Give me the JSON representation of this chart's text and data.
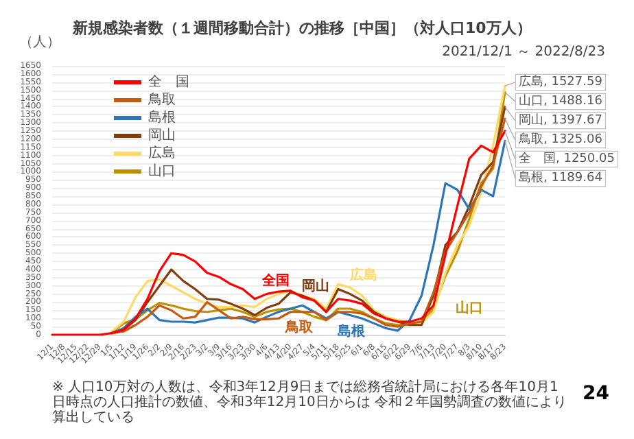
{
  "chart_data": {
    "type": "line",
    "title": "新規感染者数（１週間移動合計）の推移［中国］（対人口10万人）",
    "subtitle": "2021/12/1 ～ 2022/8/23",
    "ylabel": "（人）",
    "categories": [
      "12/1",
      "12/8",
      "12/15",
      "12/22",
      "12/29",
      "1/5",
      "1/12",
      "1/19",
      "1/26",
      "2/2",
      "2/9",
      "2/16",
      "2/23",
      "3/2",
      "3/9",
      "3/16",
      "3/23",
      "3/30",
      "4/6",
      "4/13",
      "4/20",
      "4/27",
      "5/4",
      "5/11",
      "5/18",
      "5/25",
      "6/1",
      "6/8",
      "6/15",
      "6/22",
      "6/29",
      "7/6",
      "7/13",
      "7/20",
      "7/27",
      "8/3",
      "8/10",
      "8/17",
      "8/23"
    ],
    "series": [
      {
        "name": "全　国",
        "color": "#ff0000",
        "values": [
          0,
          0,
          0,
          0,
          0,
          10,
          30,
          100,
          220,
          390,
          500,
          490,
          450,
          380,
          355,
          310,
          280,
          220,
          250,
          265,
          270,
          230,
          210,
          140,
          220,
          210,
          190,
          130,
          100,
          80,
          80,
          100,
          180,
          490,
          790,
          1080,
          1160,
          1120,
          1250.05
        ],
        "value_labels": [
          null,
          null,
          null,
          null,
          null,
          null,
          null,
          null,
          null,
          null,
          null,
          null,
          null,
          null,
          null,
          null,
          null,
          null,
          null,
          null,
          null,
          null,
          null,
          null,
          null,
          null,
          null,
          null,
          null,
          null,
          null,
          null,
          null,
          null,
          null,
          null,
          null,
          null,
          "全　国, 1250.05"
        ]
      },
      {
        "name": "鳥取",
        "color": "#c55a11",
        "values": [
          null,
          null,
          null,
          null,
          null,
          10,
          20,
          60,
          110,
          180,
          150,
          100,
          110,
          200,
          150,
          100,
          110,
          95,
          95,
          100,
          140,
          140,
          140,
          90,
          140,
          140,
          130,
          100,
          60,
          50,
          70,
          80,
          260,
          510,
          630,
          750,
          910,
          1040,
          1325.06
        ],
        "value_labels": [
          null,
          null,
          null,
          null,
          null,
          null,
          null,
          null,
          null,
          null,
          null,
          null,
          null,
          null,
          null,
          null,
          null,
          null,
          null,
          null,
          null,
          null,
          null,
          null,
          null,
          null,
          null,
          null,
          null,
          null,
          null,
          null,
          null,
          null,
          null,
          null,
          null,
          null,
          "鳥取, 1325.06"
        ]
      },
      {
        "name": "島根",
        "color": "#2e75b6",
        "values": [
          null,
          null,
          null,
          null,
          null,
          10,
          40,
          110,
          160,
          90,
          80,
          80,
          75,
          90,
          105,
          105,
          100,
          75,
          110,
          140,
          160,
          180,
          140,
          100,
          140,
          120,
          100,
          70,
          40,
          25,
          90,
          240,
          550,
          930,
          890,
          770,
          890,
          850,
          1189.64
        ],
        "value_labels": [
          null,
          null,
          null,
          null,
          null,
          null,
          null,
          null,
          null,
          null,
          null,
          null,
          null,
          null,
          null,
          null,
          null,
          null,
          null,
          null,
          null,
          null,
          null,
          null,
          null,
          null,
          null,
          null,
          null,
          null,
          null,
          null,
          null,
          null,
          null,
          null,
          null,
          null,
          "島根, 1189.64"
        ]
      },
      {
        "name": "岡山",
        "color": "#843c0c",
        "values": [
          null,
          null,
          null,
          null,
          null,
          10,
          30,
          90,
          200,
          300,
          400,
          330,
          280,
          220,
          215,
          190,
          160,
          120,
          165,
          190,
          260,
          240,
          210,
          140,
          280,
          250,
          210,
          140,
          100,
          80,
          60,
          60,
          240,
          550,
          630,
          790,
          980,
          1060,
          1397.67
        ],
        "value_labels": [
          null,
          null,
          null,
          null,
          null,
          null,
          null,
          null,
          null,
          null,
          null,
          null,
          null,
          null,
          null,
          null,
          null,
          null,
          null,
          null,
          null,
          null,
          null,
          null,
          null,
          null,
          null,
          null,
          null,
          null,
          null,
          null,
          null,
          null,
          null,
          null,
          null,
          null,
          "岡山, 1397.67"
        ]
      },
      {
        "name": "広島",
        "color": "#ffd966",
        "values": [
          null,
          null,
          null,
          null,
          null,
          20,
          80,
          230,
          330,
          340,
          300,
          260,
          220,
          190,
          170,
          170,
          180,
          170,
          220,
          250,
          270,
          240,
          220,
          160,
          310,
          290,
          240,
          150,
          110,
          90,
          75,
          70,
          140,
          380,
          550,
          670,
          870,
          1160,
          1527.59
        ],
        "value_labels": [
          null,
          null,
          null,
          null,
          null,
          null,
          null,
          null,
          null,
          null,
          null,
          null,
          null,
          null,
          null,
          null,
          null,
          null,
          null,
          null,
          null,
          null,
          null,
          null,
          null,
          null,
          null,
          null,
          null,
          null,
          null,
          null,
          null,
          null,
          null,
          null,
          null,
          null,
          "広島, 1527.59"
        ]
      },
      {
        "name": "山口",
        "color": "#bf9000",
        "values": [
          null,
          null,
          null,
          null,
          null,
          15,
          70,
          95,
          150,
          195,
          180,
          160,
          145,
          140,
          150,
          160,
          140,
          110,
          140,
          155,
          160,
          140,
          110,
          90,
          160,
          160,
          140,
          100,
          70,
          60,
          60,
          70,
          160,
          360,
          510,
          710,
          930,
          1020,
          1488.16
        ],
        "value_labels": [
          null,
          null,
          null,
          null,
          null,
          null,
          null,
          null,
          null,
          null,
          null,
          null,
          null,
          null,
          null,
          null,
          null,
          null,
          null,
          null,
          null,
          null,
          null,
          null,
          null,
          null,
          null,
          null,
          null,
          null,
          null,
          null,
          null,
          null,
          null,
          null,
          null,
          null,
          "山口, 1488.16"
        ]
      }
    ],
    "ylim": [
      0,
      1650
    ],
    "yticks": [
      0,
      50,
      100,
      150,
      200,
      250,
      300,
      350,
      400,
      450,
      500,
      550,
      600,
      650,
      700,
      750,
      800,
      850,
      900,
      950,
      1000,
      1050,
      1100,
      1150,
      1200,
      1250,
      1300,
      1350,
      1400,
      1450,
      1500,
      1550,
      1600,
      1650
    ],
    "grid": "y",
    "legend": "top left",
    "marker": "none",
    "annotations": [
      "全国",
      "鳥取",
      "岡山",
      "広島",
      "島根",
      "山口",
      "※ 人口10万対の人数は、令和3年12月9日までは総務省統計局における各年10月1日時点の人口推計の数値、令和3年12月10日からは 令和２年国勢調査の数値により算出している",
      "24"
    ]
  }
}
